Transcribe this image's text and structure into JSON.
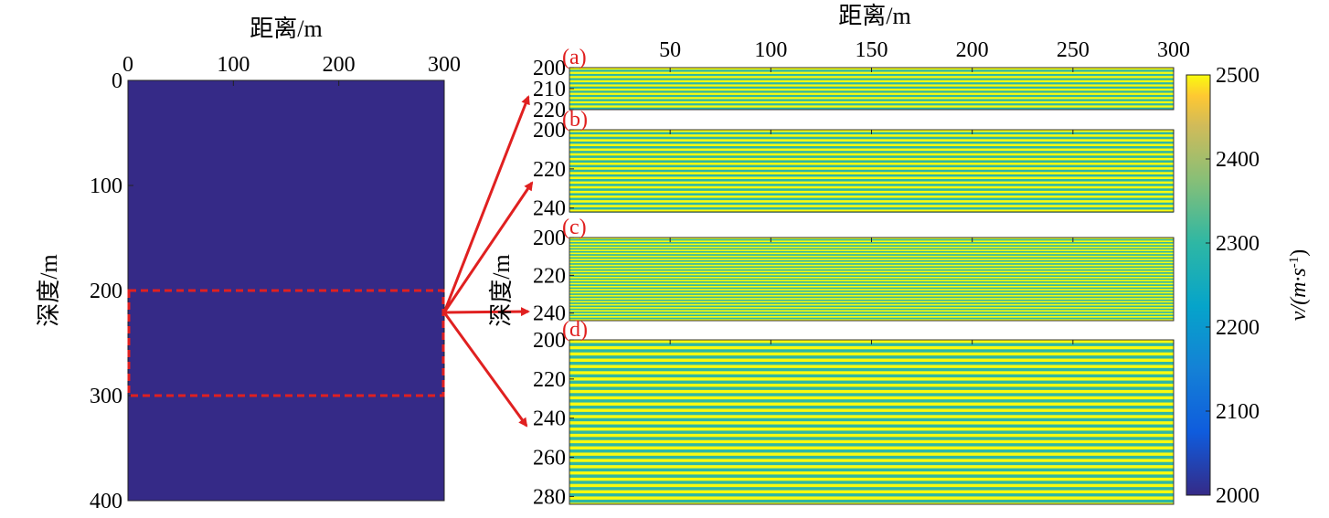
{
  "chart_data": [
    {
      "id": "main",
      "type": "heatmap",
      "xlabel": "距离/m",
      "ylabel": "深度/m",
      "xlim": [
        0,
        300
      ],
      "ylim": [
        0,
        400
      ],
      "xticks": [
        0,
        100,
        200,
        300
      ],
      "yticks": [
        0,
        100,
        200,
        300,
        400
      ],
      "x_axis_position": "top",
      "y_inverted": true,
      "fill_value": 2000,
      "highlight_box": {
        "x": [
          0,
          300
        ],
        "y": [
          200,
          300
        ]
      }
    },
    {
      "id": "a",
      "type": "heatmap",
      "panel_label": "(a)",
      "xlabel": "距离/m",
      "xlim": [
        0,
        300
      ],
      "ylim": [
        200,
        220
      ],
      "xticks": [
        50,
        100,
        150,
        200,
        250,
        300
      ],
      "yticks": [
        200,
        210,
        220
      ],
      "x_axis_position": "top",
      "y_inverted": true,
      "layer_values": [
        2500,
        2300
      ],
      "layer_thickness": 1.0
    },
    {
      "id": "b",
      "type": "heatmap",
      "panel_label": "(b)",
      "xlim": [
        0,
        300
      ],
      "ylim": [
        200,
        242
      ],
      "yticks": [
        200,
        220,
        240
      ],
      "y_inverted": true,
      "layer_values": [
        2500,
        2300
      ],
      "layer_thickness": 1.2
    },
    {
      "id": "c",
      "type": "heatmap",
      "panel_label": "(c)",
      "ylabel": "深度/m",
      "xlim": [
        0,
        300
      ],
      "ylim": [
        200,
        244
      ],
      "yticks": [
        200,
        220,
        240
      ],
      "y_inverted": true,
      "layer_values": [
        2500,
        2300
      ],
      "layer_thickness": 0.8
    },
    {
      "id": "d",
      "type": "heatmap",
      "panel_label": "(d)",
      "xlim": [
        0,
        300
      ],
      "ylim": [
        200,
        284
      ],
      "yticks": [
        200,
        220,
        240,
        260,
        280
      ],
      "y_inverted": true,
      "layer_values": [
        2500,
        2300
      ],
      "layer_thickness": 1.6
    }
  ],
  "colorbar": {
    "label_main": "v/(m·s",
    "label_sup": "-1",
    "label_close": ")",
    "min": 2000,
    "max": 2500,
    "ticks": [
      2000,
      2100,
      2200,
      2300,
      2400,
      2500
    ],
    "colormap": "parula"
  },
  "colors": {
    "low": "#352a87",
    "layer_high": "#e9e21c",
    "layer_low": "#35b69a",
    "highlight": "#e02020"
  }
}
